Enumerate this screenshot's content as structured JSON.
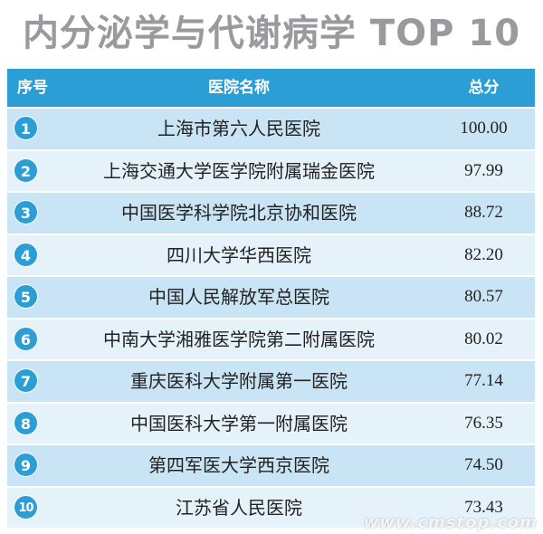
{
  "title": "内分泌学与代谢病学 TOP 10",
  "colors": {
    "header_bg": "#2b9ed6",
    "row_dark": "#c9e4f4",
    "row_light": "#e6f2fa",
    "title_gray": "#999a9e",
    "badge": "#2b9ed6"
  },
  "table": {
    "headers": {
      "rank": "序号",
      "name": "医院名称",
      "score": "总分"
    },
    "rows": [
      {
        "rank": "1",
        "name": "上海市第六人民医院",
        "score": "100.00"
      },
      {
        "rank": "2",
        "name": "上海交通大学医学院附属瑞金医院",
        "score": "97.99"
      },
      {
        "rank": "3",
        "name": "中国医学科学院北京协和医院",
        "score": "88.72"
      },
      {
        "rank": "4",
        "name": "四川大学华西医院",
        "score": "82.20"
      },
      {
        "rank": "5",
        "name": "中国人民解放军总医院",
        "score": "80.57"
      },
      {
        "rank": "6",
        "name": "中南大学湘雅医学院第二附属医院",
        "score": "80.02"
      },
      {
        "rank": "7",
        "name": "重庆医科大学附属第一医院",
        "score": "77.14"
      },
      {
        "rank": "8",
        "name": "中国医科大学第一附属医院",
        "score": "76.35"
      },
      {
        "rank": "9",
        "name": "第四军医大学西京医院",
        "score": "74.50"
      },
      {
        "rank": "10",
        "name": "江苏省人民医院",
        "score": "73.43"
      }
    ]
  },
  "watermark": "www.cmstop.com"
}
